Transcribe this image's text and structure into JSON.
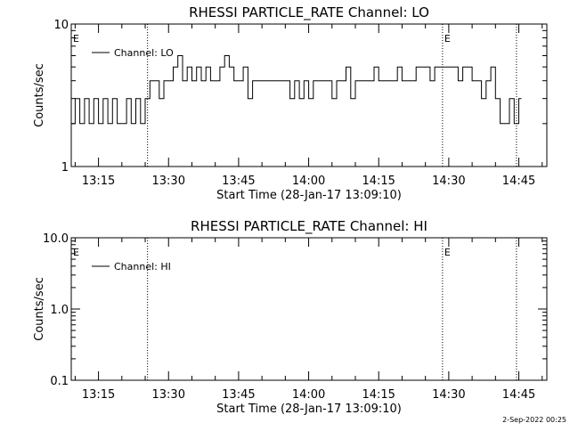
{
  "footer": {
    "timestamp": "2-Sep-2022 00:25"
  },
  "chart_data": [
    {
      "type": "line",
      "title": "RHESSI PARTICLE_RATE Channel: LO",
      "xlabel": "Start Time (28-Jan-17 13:09:10)",
      "ylabel": "Counts/sec",
      "yscale": "log",
      "ylim": [
        1,
        10
      ],
      "xlim": [
        "13:09:10",
        "14:51:00"
      ],
      "yticks": [
        {
          "value": 1,
          "label": "1"
        },
        {
          "value": 10,
          "label": "10"
        }
      ],
      "xticks": [
        {
          "value": "13:15",
          "label": "13:15"
        },
        {
          "value": "13:30",
          "label": "13:30"
        },
        {
          "value": "13:45",
          "label": "13:45"
        },
        {
          "value": "14:00",
          "label": "14:00"
        },
        {
          "value": "14:15",
          "label": "14:15"
        },
        {
          "value": "14:30",
          "label": "14:30"
        },
        {
          "value": "14:45",
          "label": "14:45"
        }
      ],
      "markers": [
        {
          "time": "13:09:10",
          "label": "E"
        },
        {
          "time": "14:28:40",
          "label": "E"
        }
      ],
      "vlines": [
        "13:25:30",
        "14:28:40",
        "14:44:30"
      ],
      "legend": {
        "position": "top-left",
        "entries": [
          "Channel: LO"
        ]
      },
      "series": [
        {
          "name": "Channel: LO",
          "x": [
            "13:09:10",
            "13:10:00",
            "13:11:00",
            "13:12:00",
            "13:13:00",
            "13:14:00",
            "13:15:00",
            "13:16:00",
            "13:17:00",
            "13:18:00",
            "13:19:00",
            "13:20:00",
            "13:21:00",
            "13:22:00",
            "13:23:00",
            "13:24:00",
            "13:25:00",
            "13:25:30",
            "13:26:00",
            "13:27:00",
            "13:28:00",
            "13:29:00",
            "13:30:00",
            "13:31:00",
            "13:32:00",
            "13:33:00",
            "13:34:00",
            "13:35:00",
            "13:36:00",
            "13:37:00",
            "13:38:00",
            "13:39:00",
            "13:40:00",
            "13:41:00",
            "13:42:00",
            "13:43:00",
            "13:44:00",
            "13:45:00",
            "13:46:00",
            "13:47:00",
            "13:48:00",
            "13:49:00",
            "13:50:00",
            "13:51:00",
            "13:52:00",
            "13:53:00",
            "13:54:00",
            "13:55:00",
            "13:56:00",
            "13:57:00",
            "13:58:00",
            "13:59:00",
            "14:00:00",
            "14:01:00",
            "14:02:00",
            "14:03:00",
            "14:04:00",
            "14:05:00",
            "14:06:00",
            "14:07:00",
            "14:08:00",
            "14:09:00",
            "14:10:00",
            "14:11:00",
            "14:12:00",
            "14:13:00",
            "14:14:00",
            "14:15:00",
            "14:16:00",
            "14:17:00",
            "14:18:00",
            "14:19:00",
            "14:20:00",
            "14:21:00",
            "14:22:00",
            "14:23:00",
            "14:24:00",
            "14:25:00",
            "14:26:00",
            "14:27:00",
            "14:28:00",
            "14:29:00",
            "14:30:00",
            "14:31:00",
            "14:32:00",
            "14:33:00",
            "14:34:00",
            "14:35:00",
            "14:36:00",
            "14:37:00",
            "14:38:00",
            "14:39:00",
            "14:40:00",
            "14:41:00",
            "14:42:00",
            "14:43:00",
            "14:44:00",
            "14:45:00"
          ],
          "y": [
            2,
            3,
            2,
            3,
            2,
            3,
            2,
            3,
            2,
            3,
            2,
            2,
            3,
            2,
            3,
            2,
            3,
            3,
            4,
            4,
            3,
            4,
            4,
            5,
            6,
            4,
            5,
            4,
            5,
            4,
            5,
            4,
            4,
            5,
            6,
            5,
            4,
            4,
            5,
            3,
            4,
            4,
            4,
            4,
            4,
            4,
            4,
            4,
            3,
            4,
            3,
            4,
            3,
            4,
            4,
            4,
            4,
            3,
            4,
            4,
            5,
            3,
            4,
            4,
            4,
            4,
            5,
            4,
            4,
            4,
            4,
            5,
            4,
            4,
            4,
            5,
            5,
            5,
            4,
            5,
            5,
            5,
            5,
            5,
            4,
            5,
            5,
            4,
            4,
            3,
            4,
            5,
            3,
            2,
            2,
            3,
            2,
            3
          ]
        }
      ]
    },
    {
      "type": "line",
      "title": "RHESSI PARTICLE_RATE Channel: HI",
      "xlabel": "Start Time (28-Jan-17 13:09:10)",
      "ylabel": "Counts/sec",
      "yscale": "log",
      "ylim": [
        0.1,
        10
      ],
      "xlim": [
        "13:09:10",
        "14:51:00"
      ],
      "yticks": [
        {
          "value": 0.1,
          "label": "0.1"
        },
        {
          "value": 1,
          "label": "1.0"
        },
        {
          "value": 10,
          "label": "10.0"
        }
      ],
      "xticks": [
        {
          "value": "13:15",
          "label": "13:15"
        },
        {
          "value": "13:30",
          "label": "13:30"
        },
        {
          "value": "13:45",
          "label": "13:45"
        },
        {
          "value": "14:00",
          "label": "14:00"
        },
        {
          "value": "14:15",
          "label": "14:15"
        },
        {
          "value": "14:30",
          "label": "14:30"
        },
        {
          "value": "14:45",
          "label": "14:45"
        }
      ],
      "markers": [
        {
          "time": "13:09:10",
          "label": "E"
        },
        {
          "time": "14:28:40",
          "label": "E"
        }
      ],
      "vlines": [
        "13:25:30",
        "14:28:40",
        "14:44:30"
      ],
      "legend": {
        "position": "top-left",
        "entries": [
          "Channel: HI"
        ]
      },
      "series": [
        {
          "name": "Channel: HI",
          "x": [],
          "y": []
        }
      ]
    }
  ]
}
